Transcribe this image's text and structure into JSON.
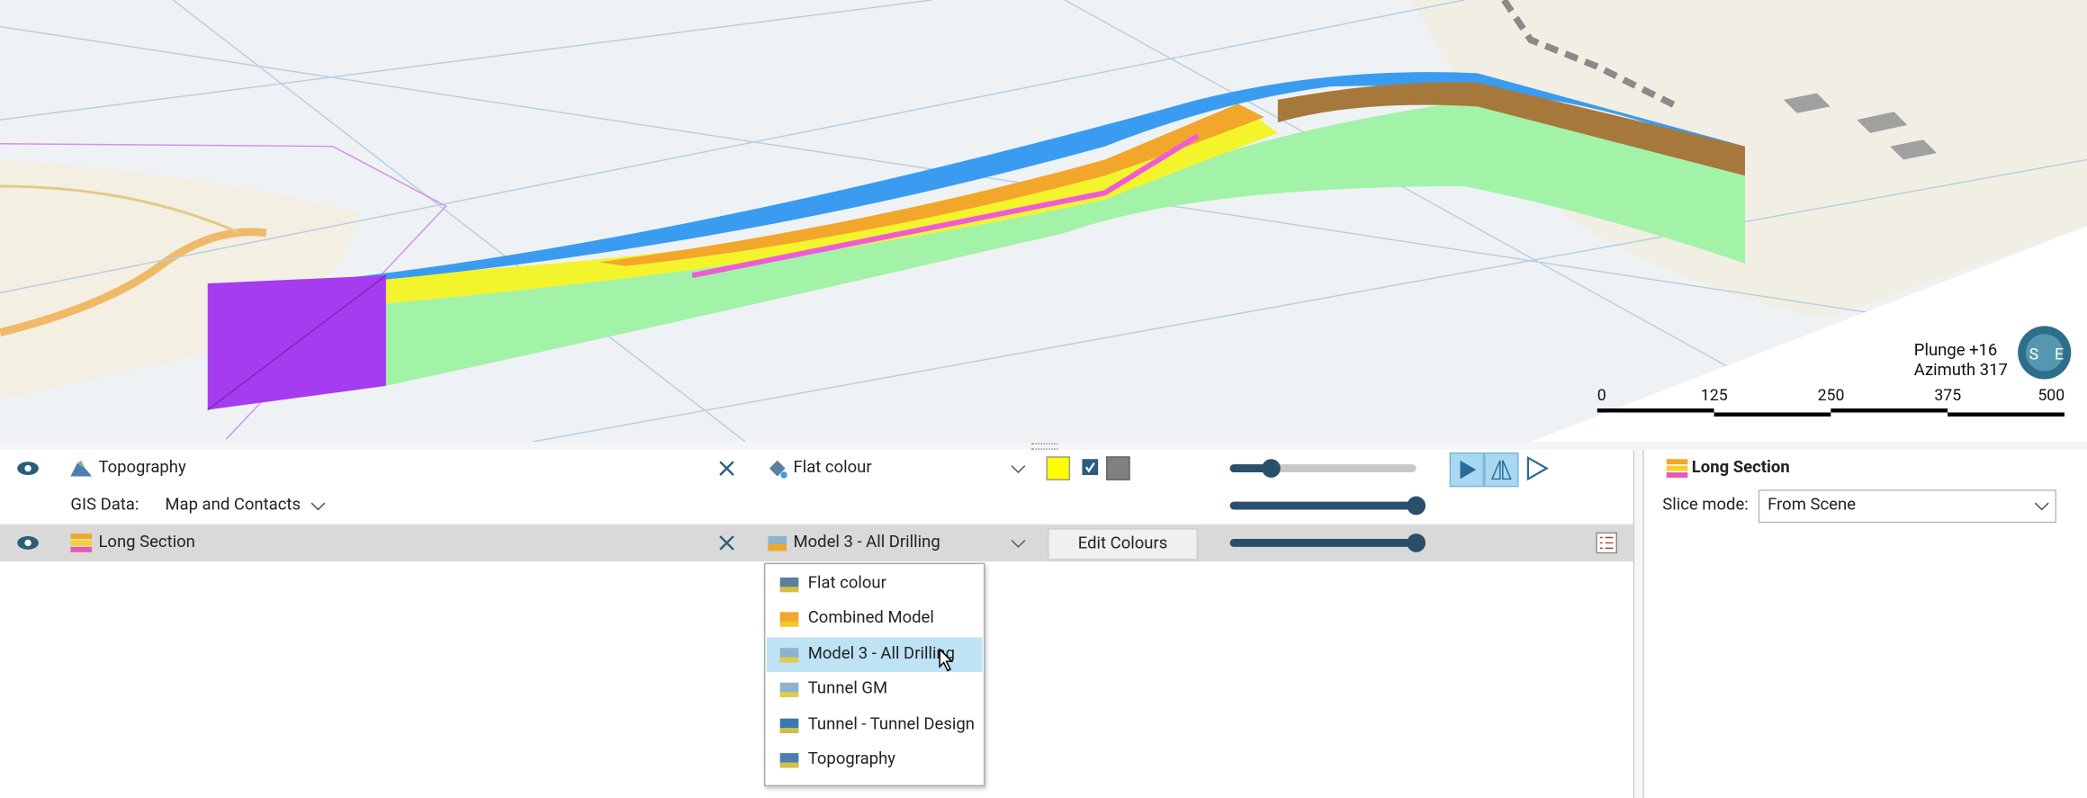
{
  "scene": {
    "plunge": "Plunge +16",
    "azimuth": "Azimuth 317",
    "compass_labels": [
      "S",
      "E"
    ],
    "scale_bar": [
      "0",
      "125",
      "250",
      "375",
      "500"
    ]
  },
  "layers": [
    {
      "name": "Topography",
      "colour_mode": "Flat colour"
    },
    {
      "label": "GIS Data:",
      "value": "Map and Contacts"
    },
    {
      "name": "Long Section",
      "colour_mode": "Model 3 - All Drilling",
      "button": "Edit Colours"
    }
  ],
  "dropdown": {
    "options": [
      "Flat colour",
      "Combined Model",
      "Model 3 - All Drilling",
      "Tunnel GM",
      "Tunnel - Tunnel Design",
      "Topography"
    ],
    "selected": 2
  },
  "properties": {
    "title": "Long Section",
    "slice_mode_label": "Slice mode:",
    "slice_mode": "From Scene"
  }
}
